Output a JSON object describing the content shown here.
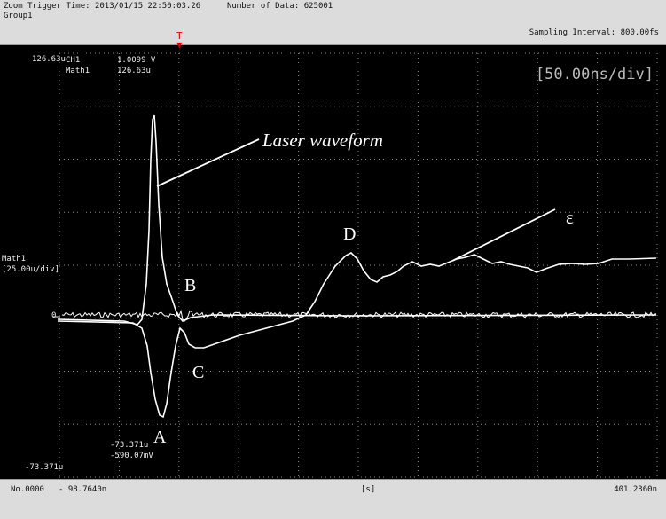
{
  "header": {
    "zoom_trigger_time": "Zoom Trigger Time: 2013/01/15 22:50:03.26",
    "number_of_data": "Number of Data: 625001",
    "group": "Group1",
    "sampling_interval": "Sampling Interval:  800.00fs",
    "trigger_marker": "T"
  },
  "screen": {
    "y_top_label": "126.63u",
    "y_bottom_label": "-73.371u",
    "zero_label": "0",
    "channel_label": "Math1",
    "channel_scale": "[25.00u/div]",
    "time_per_div": "[50.00ns/div]",
    "cursor_top": {
      "ch_name": "CH1",
      "ch_value": "1.0099 V",
      "math_name": "Math1",
      "math_value": "126.63u"
    },
    "cursor_bottom": {
      "value1": "-73.371u",
      "value2": "-590.07mV"
    }
  },
  "annotations": {
    "laser_waveform": "Laser waveform",
    "A": "A",
    "B": "B",
    "C": "C",
    "D": "D",
    "epsilon": "ε"
  },
  "footer": {
    "record_no": "No.0000",
    "x_start": "- 98.7640n",
    "x_unit": "[s]",
    "x_end": "401.2360n"
  },
  "colors": {
    "trace": "#ffffff",
    "grid": "#8a8a8a",
    "trigger": "#e00000"
  }
}
